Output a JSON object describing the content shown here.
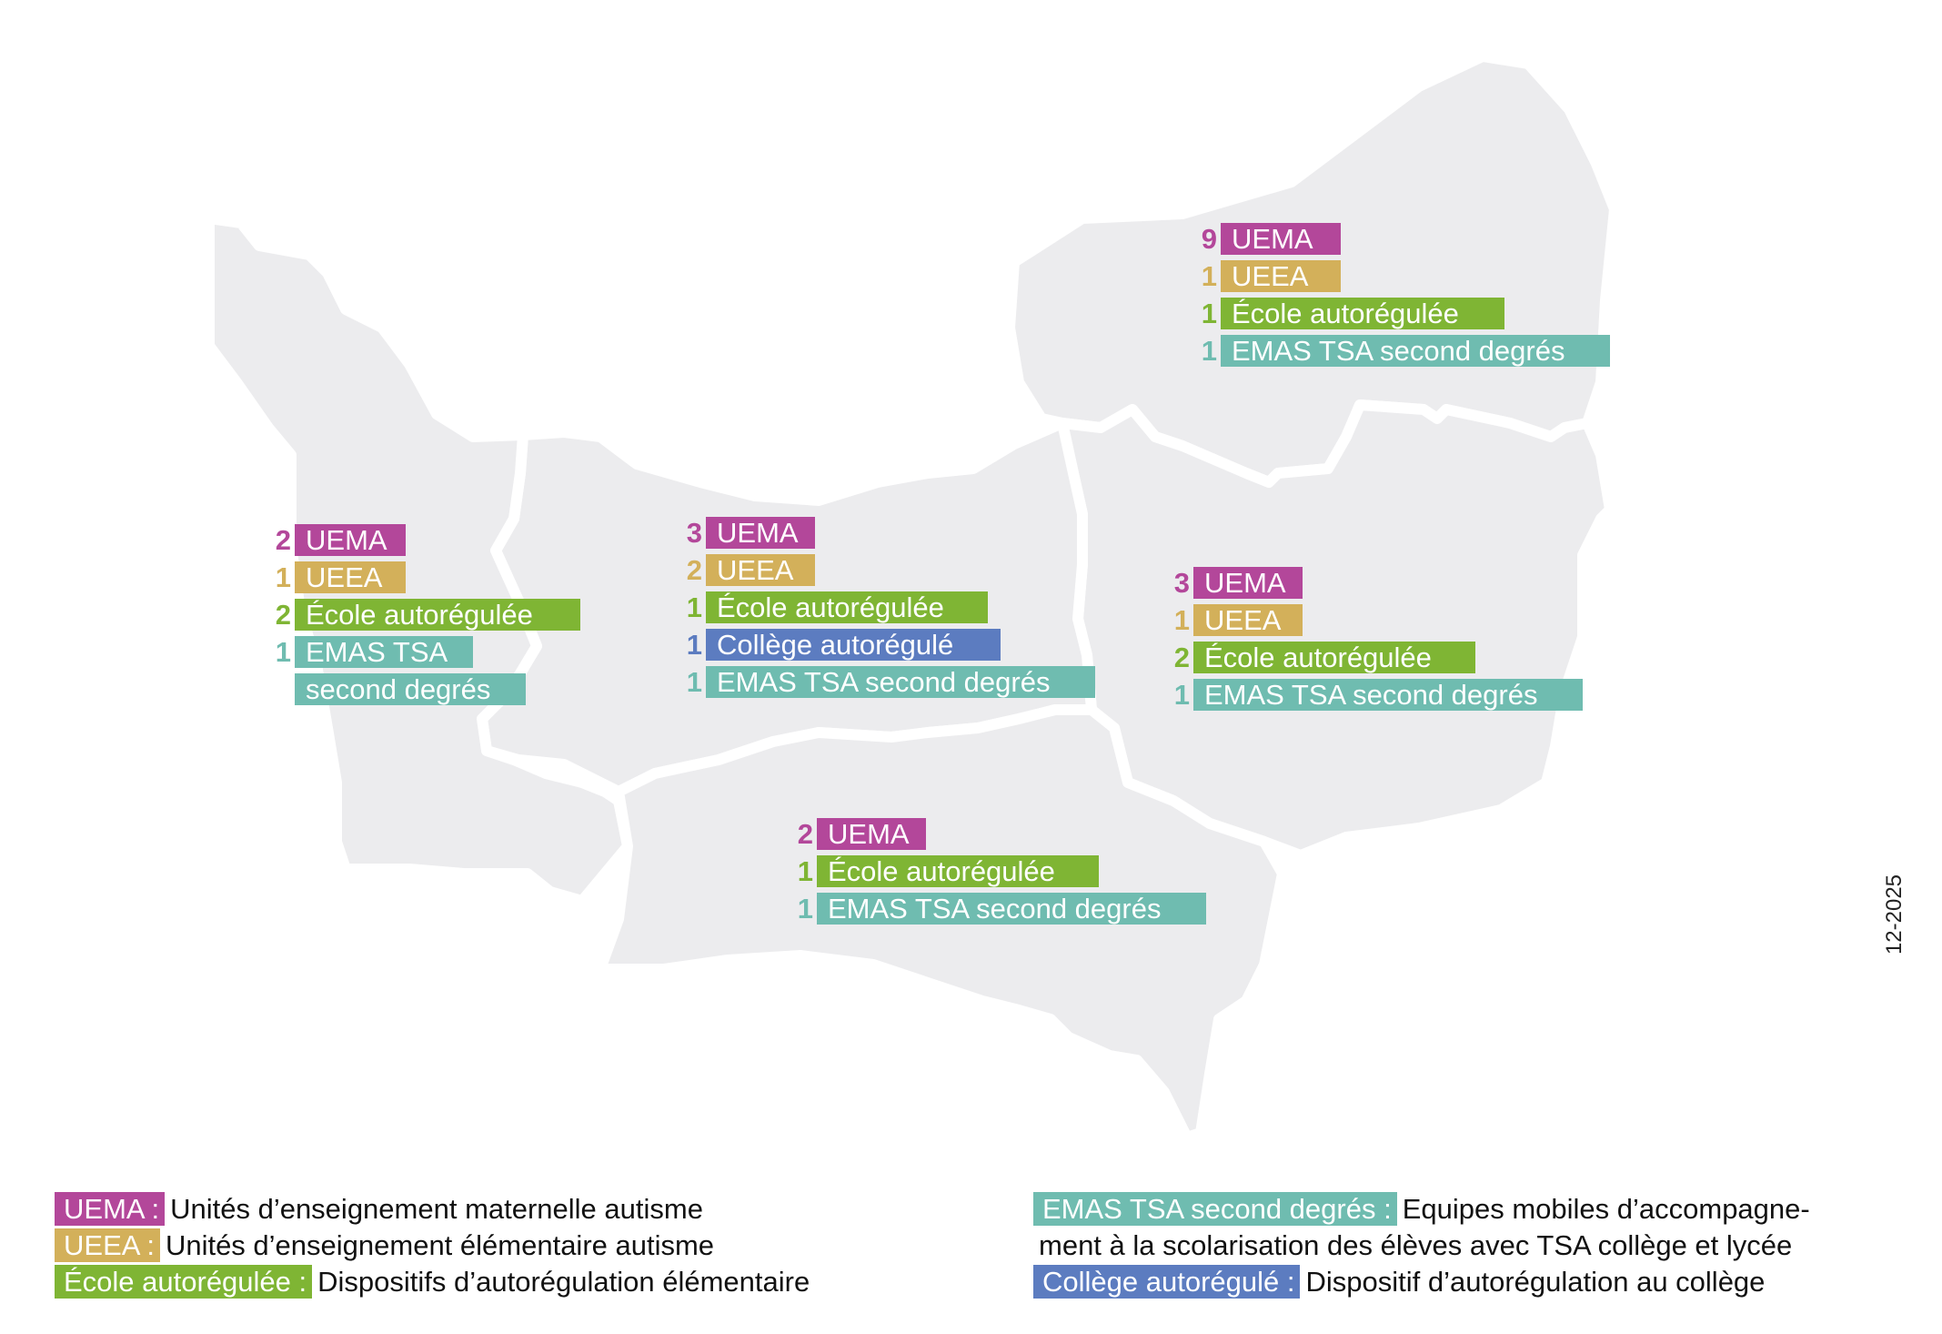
{
  "map": {
    "departments": [
      {
        "id": "manche",
        "counts": {
          "uema": "2",
          "ueea": "1",
          "ecole": "2",
          "emas": "1"
        },
        "labels": {
          "uema": "UEMA",
          "ueea": "UEEA",
          "ecole": "École autorégulée",
          "emas_line1": "EMAS TSA",
          "emas_line2": "second degrés"
        }
      },
      {
        "id": "calvados",
        "counts": {
          "uema": "3",
          "ueea": "2",
          "ecole": "1",
          "college": "1",
          "emas": "1"
        },
        "labels": {
          "uema": "UEMA",
          "ueea": "UEEA",
          "ecole": "École autorégulée",
          "college": "Collège autorégulé",
          "emas": "EMAS TSA second degrés"
        }
      },
      {
        "id": "seine-maritime",
        "counts": {
          "uema": "9",
          "ueea": "1",
          "ecole": "1",
          "emas": "1"
        },
        "labels": {
          "uema": "UEMA",
          "ueea": "UEEA",
          "ecole": "École autorégulée",
          "emas": "EMAS TSA second degrés"
        }
      },
      {
        "id": "eure",
        "counts": {
          "uema": "3",
          "ueea": "1",
          "ecole": "2",
          "emas": "1"
        },
        "labels": {
          "uema": "UEMA",
          "ueea": "UEEA",
          "ecole": "École autorégulée",
          "emas": "EMAS TSA second degrés"
        }
      },
      {
        "id": "orne",
        "counts": {
          "uema": "2",
          "ecole": "1",
          "emas": "1"
        },
        "labels": {
          "uema": "UEMA",
          "ecole": "École autorégulée",
          "emas": "EMAS TSA second degrés"
        }
      }
    ]
  },
  "legend": {
    "uema": {
      "tag": "UEMA :",
      "desc": "Unités d’enseignement maternelle autisme"
    },
    "ueea": {
      "tag": "UEEA :",
      "desc": "Unités d’enseignement élémentaire autisme"
    },
    "ecole": {
      "tag": "École autorégulée :",
      "desc": "Dispositifs d’autorégulation élémentaire"
    },
    "emas": {
      "tag": "EMAS TSA second degrés :",
      "desc": "Equipes mobiles d’accompagne-",
      "desc2": "ment à la scolarisation des élèves avec TSA collège et lycée"
    },
    "college": {
      "tag": "Collège autorégulé :",
      "desc": "Dispositif d’autorégulation au collège"
    }
  },
  "date": "12-2025",
  "colors": {
    "uema": "#b3479a",
    "ueea": "#d3b05a",
    "ecole": "#7fb534",
    "college": "#5c7cc0",
    "emas": "#6fbcb0",
    "map_fill": "#ececee"
  }
}
